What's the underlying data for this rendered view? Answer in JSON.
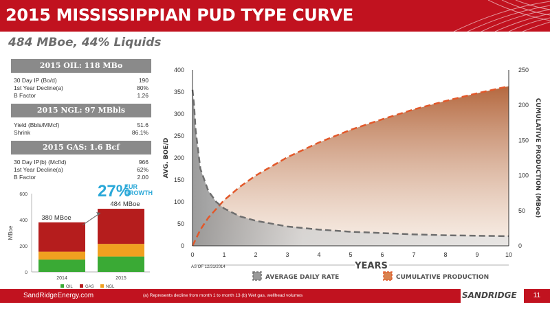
{
  "title": "2015 MISSISSIPPIAN PUD TYPE CURVE",
  "subtitle": "484 MBoe, 44% Liquids",
  "oil": {
    "header": "2015  OIL: 118 MBo",
    "rows": [
      {
        "label": "30 Day IP (Bo/d)",
        "value": "190"
      },
      {
        "label": "1st Year Decline(a)",
        "value": "80%"
      },
      {
        "label": "B Factor",
        "value": "1.26"
      }
    ]
  },
  "ngl": {
    "header": "2015  NGL: 97 MBbls",
    "rows": [
      {
        "label": "Yield (Bbls/MMcf)",
        "value": "51.6"
      },
      {
        "label": "Shrink",
        "value": "86.1%"
      }
    ]
  },
  "gas": {
    "header": "2015  GAS: 1.6 Bcf",
    "rows": [
      {
        "label": "30 Day IP(b) (Mcf/d)",
        "value": "966"
      },
      {
        "label": "1st Year Decline(a)",
        "value": "62%"
      },
      {
        "label": "B Factor",
        "value": "2.00"
      }
    ]
  },
  "eur_growth": {
    "pct": "27%",
    "line1": "EUR",
    "line2": "GROWTH"
  },
  "footer": {
    "site": "SandRidgeEnergy.com",
    "note": "(a) Represents decline from month 1 to month 13  (b) Wet gas, wellhead volumes",
    "logo": "SANDRIDGE",
    "page": "11"
  },
  "colors": {
    "brand_red": "#c1121f",
    "oil": "#3aaa35",
    "gas": "#b51d1d",
    "ngl": "#f0a020",
    "curve_red": "#e2582a",
    "curve_gray": "#6e6e6e"
  },
  "chart_data": [
    {
      "type": "bar",
      "stacked": true,
      "categories": [
        "2014",
        "2015"
      ],
      "series": [
        {
          "name": "OIL",
          "values": [
            95,
            118
          ]
        },
        {
          "name": "GAS",
          "values": [
            225,
            269
          ]
        },
        {
          "name": "NGL",
          "values": [
            60,
            97
          ]
        }
      ],
      "totals_labels": [
        "380 MBoe",
        "484 MBoe"
      ],
      "ylabel": "MBoe",
      "ylim": [
        0,
        600
      ],
      "yticks": [
        "0",
        "200",
        "400",
        "600"
      ],
      "legend": [
        "OIL",
        "GAS",
        "NGL"
      ],
      "legend_position": "bottom"
    },
    {
      "type": "area",
      "xlabel": "YEARS",
      "ylabel": "AVG. BOE/D",
      "y2label": "CUMULATIVE PRODUCTION (MBoe)",
      "xlim": [
        0,
        10
      ],
      "ylim": [
        0,
        400
      ],
      "y2lim": [
        0,
        250
      ],
      "xticks": [
        "0",
        "1",
        "2",
        "3",
        "4",
        "5",
        "6",
        "7",
        "8",
        "9",
        "10"
      ],
      "yticks": [
        "0",
        "50",
        "100",
        "150",
        "200",
        "250",
        "300",
        "350",
        "400"
      ],
      "y2ticks": [
        "0",
        "50",
        "100",
        "150",
        "200",
        "250"
      ],
      "note": "AS OF 12/31/2014",
      "series": [
        {
          "name": "AVERAGE DAILY RATE",
          "axis": "left",
          "x": [
            0,
            0.05,
            0.1,
            0.25,
            0.5,
            0.75,
            1,
            1.5,
            2,
            3,
            4,
            5,
            6,
            7,
            8,
            9,
            10
          ],
          "y": [
            355,
            320,
            262,
            175,
            125,
            100,
            85,
            67,
            57,
            44,
            37,
            32,
            29,
            26,
            24,
            23,
            22
          ]
        },
        {
          "name": "CUMULATIVE PRODUCTION",
          "axis": "right",
          "x": [
            0,
            0.25,
            0.5,
            1,
            1.5,
            2,
            3,
            4,
            5,
            6,
            7,
            8,
            9,
            10
          ],
          "y": [
            0,
            23,
            40,
            65,
            84,
            100,
            126,
            147,
            165,
            180,
            194,
            206,
            217,
            227
          ]
        }
      ],
      "legend": [
        "AVERAGE DAILY RATE",
        "CUMULATIVE PRODUCTION"
      ],
      "legend_position": "bottom"
    }
  ]
}
